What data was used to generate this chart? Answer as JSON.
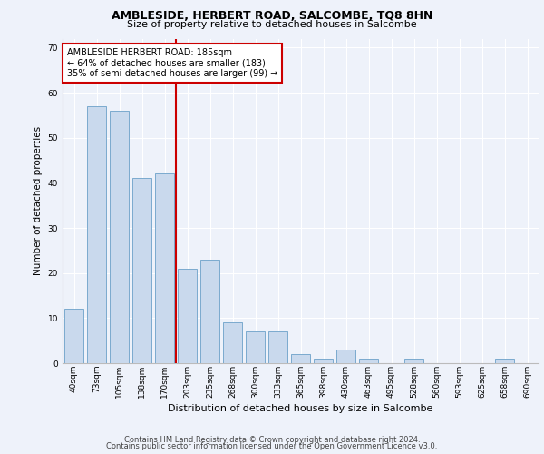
{
  "title": "AMBLESIDE, HERBERT ROAD, SALCOMBE, TQ8 8HN",
  "subtitle": "Size of property relative to detached houses in Salcombe",
  "xlabel": "Distribution of detached houses by size in Salcombe",
  "ylabel": "Number of detached properties",
  "categories": [
    "40sqm",
    "73sqm",
    "105sqm",
    "138sqm",
    "170sqm",
    "203sqm",
    "235sqm",
    "268sqm",
    "300sqm",
    "333sqm",
    "365sqm",
    "398sqm",
    "430sqm",
    "463sqm",
    "495sqm",
    "528sqm",
    "560sqm",
    "593sqm",
    "625sqm",
    "658sqm",
    "690sqm"
  ],
  "values": [
    12,
    57,
    56,
    41,
    42,
    21,
    23,
    9,
    7,
    7,
    2,
    1,
    3,
    1,
    0,
    1,
    0,
    0,
    0,
    1,
    0
  ],
  "bar_color": "#c9d9ed",
  "bar_edge_color": "#7aaace",
  "vline_x": 4.5,
  "vline_color": "#cc0000",
  "ylim": [
    0,
    72
  ],
  "yticks": [
    0,
    10,
    20,
    30,
    40,
    50,
    60,
    70
  ],
  "annotation_title": "AMBLESIDE HERBERT ROAD: 185sqm",
  "annotation_line1": "← 64% of detached houses are smaller (183)",
  "annotation_line2": "35% of semi-detached houses are larger (99) →",
  "annotation_box_color": "#ffffff",
  "annotation_box_edge": "#cc0000",
  "footer_line1": "Contains HM Land Registry data © Crown copyright and database right 2024.",
  "footer_line2": "Contains public sector information licensed under the Open Government Licence v3.0.",
  "background_color": "#eef2fa",
  "plot_background": "#eef2fa",
  "grid_color": "#ffffff",
  "title_fontsize": 9,
  "subtitle_fontsize": 8,
  "xlabel_fontsize": 8,
  "ylabel_fontsize": 7.5,
  "tick_fontsize": 6.5,
  "ann_fontsize": 7,
  "footer_fontsize": 6
}
